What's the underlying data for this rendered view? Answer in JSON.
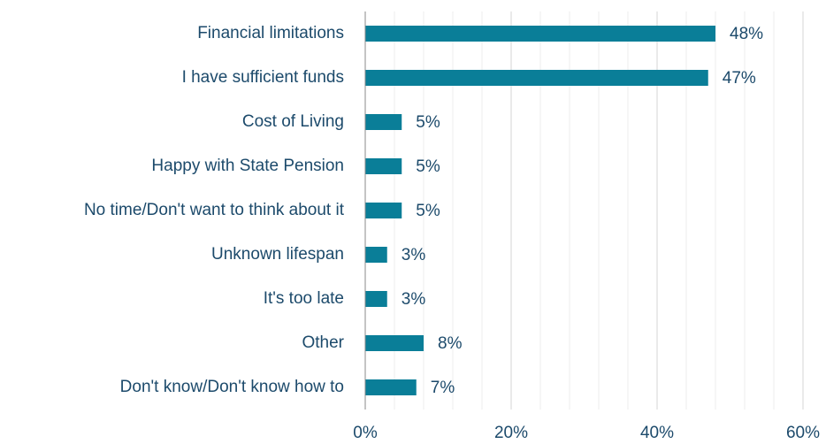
{
  "chart_data": {
    "type": "barh",
    "categories": [
      "Financial limitations",
      "I have sufficient funds",
      "Cost of Living",
      "Happy with State Pension",
      "No time/Don't want to think about it",
      "Unknown lifespan",
      "It's too late",
      "Other",
      "Don't know/Don't know how to"
    ],
    "values": [
      48,
      47,
      5,
      5,
      5,
      3,
      3,
      8,
      7
    ],
    "value_labels": [
      "48%",
      "47%",
      "5%",
      "5%",
      "5%",
      "3%",
      "3%",
      "8%",
      "7%"
    ],
    "color": "#0a7e98",
    "xlim": [
      0,
      60
    ],
    "xticks": [
      {
        "value": 0,
        "label": "0%"
      },
      {
        "value": 20,
        "label": "20%"
      },
      {
        "value": 40,
        "label": "40%"
      },
      {
        "value": 60,
        "label": "60%"
      }
    ],
    "minor_xticks": [
      4,
      8,
      12,
      16,
      24,
      28,
      32,
      36,
      44,
      48,
      52,
      56
    ],
    "grid": true
  }
}
